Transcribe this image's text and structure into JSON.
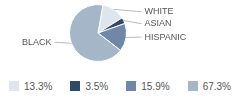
{
  "chart_data": {
    "type": "pie",
    "categories": [
      "WHITE",
      "ASIAN",
      "HISPANIC",
      "BLACK"
    ],
    "values": [
      13.3,
      3.5,
      15.9,
      67.3
    ],
    "value_labels": [
      "13.3%",
      "3.5%",
      "15.9%",
      "67.3%"
    ],
    "colors": [
      "#dfe5ec",
      "#2e4a69",
      "#6e88a6",
      "#a6b6c9"
    ],
    "legend": "bottom"
  }
}
